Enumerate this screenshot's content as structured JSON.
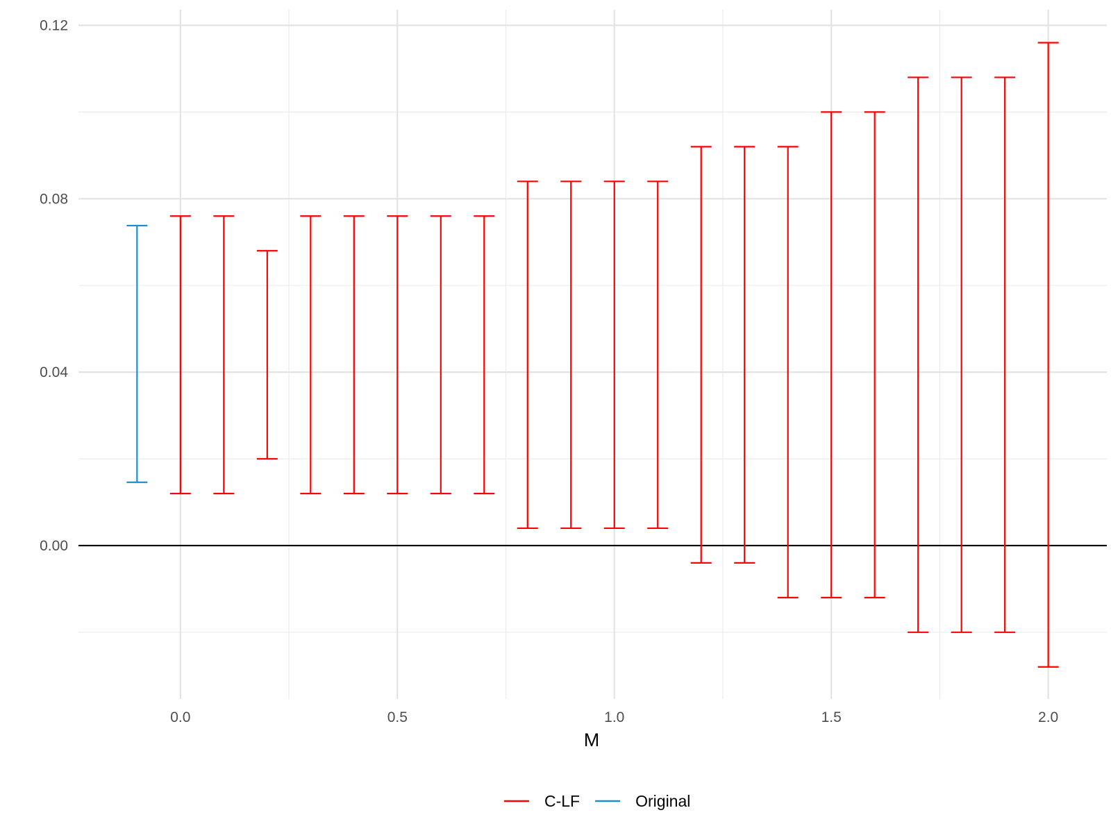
{
  "chart_data": {
    "type": "errorbar",
    "title": "",
    "xlabel": "M",
    "ylabel": "",
    "xlim": [
      -0.235,
      2.135
    ],
    "ylim": [
      -0.0354,
      0.1236
    ],
    "x_ticks": [
      {
        "value": 0.0,
        "label": "0.0"
      },
      {
        "value": 0.5,
        "label": "0.5"
      },
      {
        "value": 1.0,
        "label": "1.0"
      },
      {
        "value": 1.5,
        "label": "1.5"
      },
      {
        "value": 2.0,
        "label": "2.0"
      }
    ],
    "y_ticks": [
      {
        "value": 0.0,
        "label": "0.00"
      },
      {
        "value": 0.04,
        "label": "0.04"
      },
      {
        "value": 0.08,
        "label": "0.08"
      },
      {
        "value": 0.12,
        "label": "0.12"
      }
    ],
    "x_minor_grid": [
      0.25,
      0.75,
      1.25,
      1.75
    ],
    "y_minor_grid": [
      -0.02,
      0.02,
      0.06,
      0.1
    ],
    "grid": true,
    "hline": 0.0,
    "legend_position": "bottom",
    "series": [
      {
        "name": "C-LF",
        "color": "#ff0000",
        "points": [
          {
            "x": 0.0,
            "lower": 0.012,
            "upper": 0.076
          },
          {
            "x": 0.1,
            "lower": 0.012,
            "upper": 0.076
          },
          {
            "x": 0.2,
            "lower": 0.02,
            "upper": 0.068
          },
          {
            "x": 0.3,
            "lower": 0.012,
            "upper": 0.076
          },
          {
            "x": 0.4,
            "lower": 0.012,
            "upper": 0.076
          },
          {
            "x": 0.5,
            "lower": 0.012,
            "upper": 0.076
          },
          {
            "x": 0.6,
            "lower": 0.012,
            "upper": 0.076
          },
          {
            "x": 0.7,
            "lower": 0.012,
            "upper": 0.076
          },
          {
            "x": 0.8,
            "lower": 0.004,
            "upper": 0.084
          },
          {
            "x": 0.9,
            "lower": 0.004,
            "upper": 0.084
          },
          {
            "x": 1.0,
            "lower": 0.004,
            "upper": 0.084
          },
          {
            "x": 1.1,
            "lower": 0.004,
            "upper": 0.084
          },
          {
            "x": 1.2,
            "lower": -0.004,
            "upper": 0.092
          },
          {
            "x": 1.3,
            "lower": -0.004,
            "upper": 0.092
          },
          {
            "x": 1.4,
            "lower": -0.012,
            "upper": 0.092
          },
          {
            "x": 1.5,
            "lower": -0.012,
            "upper": 0.1
          },
          {
            "x": 1.6,
            "lower": -0.012,
            "upper": 0.1
          },
          {
            "x": 1.7,
            "lower": -0.02,
            "upper": 0.108
          },
          {
            "x": 1.8,
            "lower": -0.02,
            "upper": 0.108
          },
          {
            "x": 1.9,
            "lower": -0.02,
            "upper": 0.108
          },
          {
            "x": 2.0,
            "lower": -0.028,
            "upper": 0.116
          }
        ]
      },
      {
        "name": "Original",
        "color": "#1b8fd0",
        "points": [
          {
            "x": -0.1,
            "lower": 0.0146,
            "upper": 0.0738
          }
        ]
      }
    ]
  }
}
